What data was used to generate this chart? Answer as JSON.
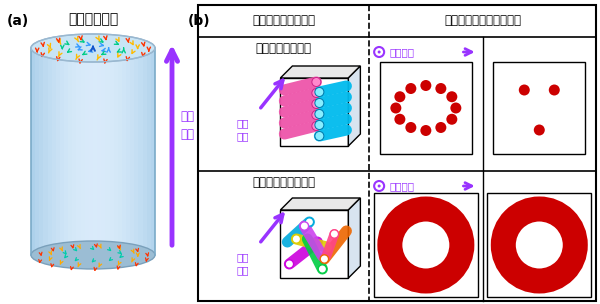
{
  "title_a": "(a)",
  "title_b": "(b)",
  "label_skyrmion": "スキルミオン",
  "label_external_field": "外部\n磁場",
  "label_crystal": "スキルミオン結晶",
  "label_disordered": "乱れたスキルミオン",
  "label_collection": "スキルミオン集合体",
  "label_pattern": "観測される散乱パターン",
  "label_gaibajiba": "外部\n磁場",
  "bg_color": "#ffffff",
  "purple_color": "#9933ff",
  "red_color": "#cc0000",
  "font_size_title": 10,
  "font_size_label": 8.5,
  "font_size_small": 7.5
}
